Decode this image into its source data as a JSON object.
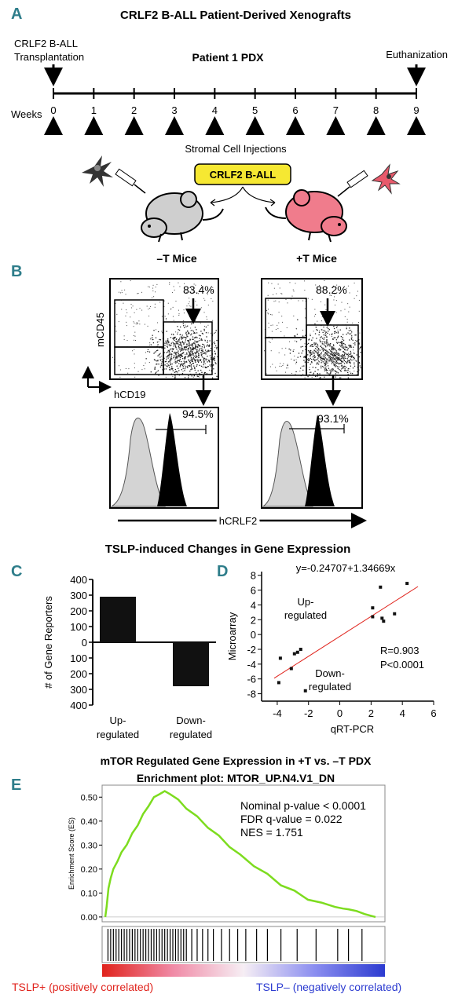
{
  "panel_a": {
    "letter": "A",
    "title": "CRLF2 B-ALL Patient-Derived Xenografts",
    "transplant_label_1": "CRLF2 B-ALL",
    "transplant_label_2": "Transplantation",
    "pdx_label": "Patient 1 PDX",
    "euthanize_label": "Euthanization",
    "weeks_label": "Weeks",
    "weeks": [
      "0",
      "1",
      "2",
      "3",
      "4",
      "5",
      "6",
      "7",
      "8",
      "9"
    ],
    "stromal_label": "Stromal Cell Injections",
    "box_label": "CRLF2 B-ALL",
    "minus_mice": "–T Mice",
    "plus_mice": "+T Mice",
    "box_color": "#f6e832",
    "plus_mouse_color": "#f07c8c",
    "minus_mouse_color": "#cfcfcf"
  },
  "panel_b": {
    "letter": "B",
    "ylabel": "mCD45",
    "xlabel": "hCD19",
    "hist_xlabel": "hCRLF2",
    "minus_gate_pct": "83.4%",
    "plus_gate_pct": "88.2%",
    "minus_hist_pct": "94.5%",
    "plus_hist_pct": "93.1%"
  },
  "section_title": "TSLP-induced Changes in Gene Expression",
  "chart_data": [
    {
      "type": "bar",
      "panel": "C",
      "categories": [
        "Up-\nregulated",
        "Down-\nregulated"
      ],
      "category_lines": [
        [
          "Up-",
          "regulated"
        ],
        [
          "Down-",
          "regulated"
        ]
      ],
      "values": [
        290,
        -280
      ],
      "ylabel": "# of Gene Reporters",
      "ylim": [
        -400,
        400
      ],
      "yticks": [
        "400",
        "300",
        "200",
        "100",
        "0",
        "100",
        "200",
        "300",
        "400"
      ]
    },
    {
      "type": "scatter",
      "panel": "D",
      "equation": "y=-0.24707+1.34669x",
      "xlabel": "qRT-PCR",
      "ylabel": "Microarray",
      "xlim": [
        -5,
        6
      ],
      "ylim": [
        -9,
        8.5
      ],
      "xticks": [
        "-4",
        "-2",
        "0",
        "2",
        "4",
        "6"
      ],
      "yticks": [
        "8",
        "6",
        "4",
        "2",
        "0",
        "-2",
        "-4",
        "-6",
        "-8"
      ],
      "points": [
        [
          -3.8,
          -3.2
        ],
        [
          -3.9,
          -6.5
        ],
        [
          -3.1,
          -4.6
        ],
        [
          -2.9,
          -2.6
        ],
        [
          -2.7,
          -2.4
        ],
        [
          -2.5,
          -2.0
        ],
        [
          -2.2,
          -7.6
        ],
        [
          2.1,
          3.6
        ],
        [
          2.1,
          2.4
        ],
        [
          2.6,
          6.4
        ],
        [
          2.7,
          2.2
        ],
        [
          2.8,
          1.8
        ],
        [
          3.5,
          2.8
        ],
        [
          4.3,
          6.9
        ]
      ],
      "fit": {
        "intercept": -0.24707,
        "slope": 1.34669
      },
      "up_label": [
        "Up-",
        "regulated"
      ],
      "down_label": [
        "Down-",
        "regulated"
      ],
      "r_label": "R=0.903",
      "p_label": "P<0.0001",
      "line_color": "#e0231c"
    },
    {
      "type": "line",
      "panel": "E",
      "title": "mTOR Regulated Gene Expression  in +T vs. –T PDX",
      "subtitle": "Enrichment plot: MTOR_UP.N4.V1_DN",
      "ylabel": "Enrichment Score (ES)",
      "yticks": [
        "0.50",
        "0.40",
        "0.30",
        "0.20",
        "0.10",
        "0.00"
      ],
      "ylim": [
        -0.02,
        0.55
      ],
      "es_curve": [
        [
          0,
          0.0
        ],
        [
          0.005,
          0.05
        ],
        [
          0.012,
          0.12
        ],
        [
          0.02,
          0.17
        ],
        [
          0.03,
          0.2
        ],
        [
          0.045,
          0.24
        ],
        [
          0.06,
          0.27
        ],
        [
          0.08,
          0.31
        ],
        [
          0.1,
          0.35
        ],
        [
          0.12,
          0.39
        ],
        [
          0.14,
          0.43
        ],
        [
          0.16,
          0.47
        ],
        [
          0.18,
          0.5
        ],
        [
          0.2,
          0.52
        ],
        [
          0.22,
          0.525
        ],
        [
          0.24,
          0.52
        ],
        [
          0.27,
          0.49
        ],
        [
          0.3,
          0.46
        ],
        [
          0.34,
          0.42
        ],
        [
          0.38,
          0.38
        ],
        [
          0.42,
          0.34
        ],
        [
          0.46,
          0.3
        ],
        [
          0.5,
          0.26
        ],
        [
          0.55,
          0.22
        ],
        [
          0.6,
          0.18
        ],
        [
          0.65,
          0.14
        ],
        [
          0.7,
          0.11
        ],
        [
          0.75,
          0.08
        ],
        [
          0.8,
          0.06
        ],
        [
          0.85,
          0.05
        ],
        [
          0.88,
          0.035
        ],
        [
          0.9,
          0.04
        ],
        [
          0.93,
          0.025
        ],
        [
          0.96,
          0.02
        ],
        [
          1.0,
          0.0
        ]
      ],
      "hits": [
        0.01,
        0.02,
        0.03,
        0.04,
        0.05,
        0.06,
        0.07,
        0.08,
        0.09,
        0.1,
        0.11,
        0.12,
        0.13,
        0.14,
        0.15,
        0.16,
        0.17,
        0.18,
        0.19,
        0.2,
        0.21,
        0.22,
        0.23,
        0.24,
        0.25,
        0.26,
        0.27,
        0.28,
        0.29,
        0.3,
        0.32,
        0.34,
        0.36,
        0.38,
        0.4,
        0.43,
        0.46,
        0.49,
        0.52,
        0.56,
        0.6,
        0.65,
        0.71,
        0.78,
        0.86,
        0.9,
        0.95
      ],
      "stats": [
        "Nominal p-value < 0.0001",
        "FDR q-value = 0.022",
        "NES = 1.751"
      ],
      "curve_color": "#7ddc1f",
      "pos_label": "TSLP+ (positively correlated)",
      "neg_label": "TSLP– (negatively correlated)",
      "pos_color": "#e0231c",
      "neg_color": "#2c3bd0"
    }
  ],
  "panel_c_letter": "C",
  "panel_d_letter": "D",
  "panel_e_letter": "E"
}
